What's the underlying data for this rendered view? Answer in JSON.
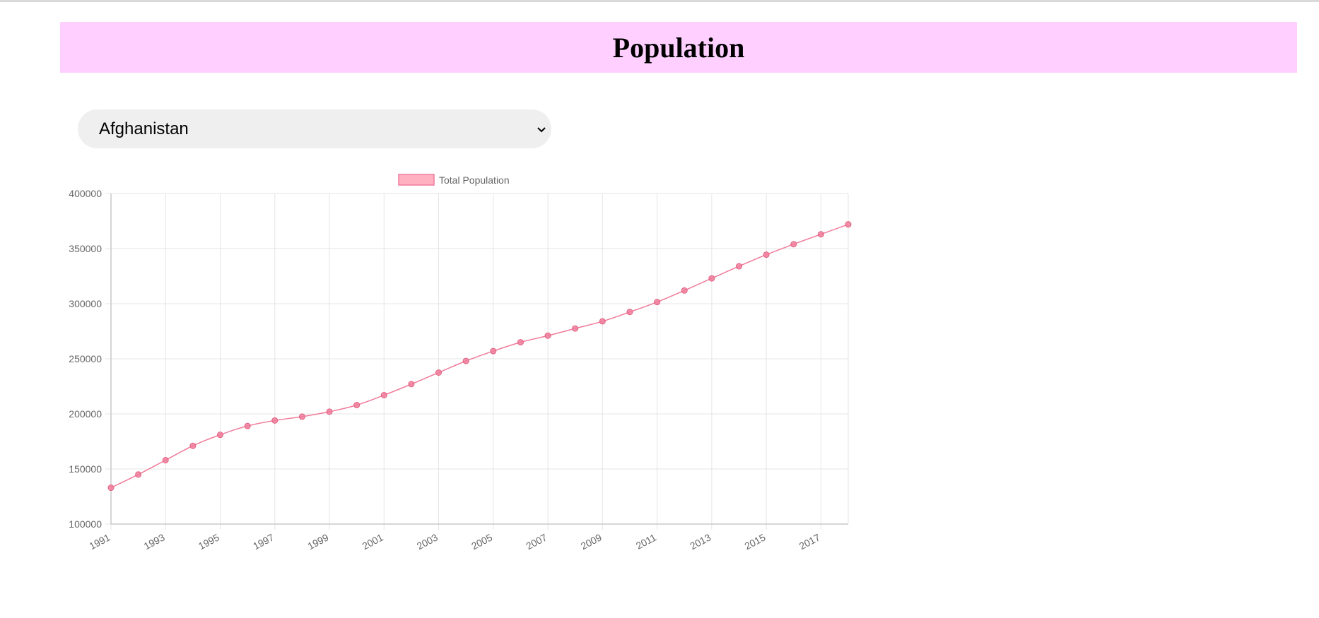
{
  "header": {
    "title": "Population"
  },
  "country_select": {
    "value": "Afghanistan"
  },
  "colors": {
    "header_bg": "#ffd0ff",
    "series_line": "#f07b9b",
    "series_fill": "#ffb0c1",
    "grid": "#e5e5e5"
  },
  "chart_data": {
    "type": "line",
    "legend": {
      "label": "Total Population",
      "placement": "top-center"
    },
    "x": [
      1991,
      1992,
      1993,
      1994,
      1995,
      1996,
      1997,
      1998,
      1999,
      2000,
      2001,
      2002,
      2003,
      2004,
      2005,
      2006,
      2007,
      2008,
      2009,
      2010,
      2011,
      2012,
      2013,
      2014,
      2015,
      2016,
      2017,
      2018
    ],
    "x_tick_labels": [
      "1991",
      "1993",
      "1995",
      "1997",
      "1999",
      "2001",
      "2003",
      "2005",
      "2007",
      "2009",
      "2011",
      "2013",
      "2015",
      "2017"
    ],
    "series": [
      {
        "name": "Total Population",
        "values": [
          133000,
          145000,
          158000,
          171000,
          181000,
          189000,
          194000,
          197500,
          202000,
          208000,
          217000,
          227000,
          237500,
          248000,
          257000,
          265000,
          271000,
          277500,
          284000,
          292500,
          301500,
          312000,
          323000,
          334000,
          344500,
          354000,
          363000,
          372000
        ]
      }
    ],
    "ylim": [
      100000,
      400000
    ],
    "y_tick_labels": [
      "400000",
      "350000",
      "300000",
      "250000",
      "200000",
      "150000",
      "100000"
    ],
    "grid": true
  }
}
